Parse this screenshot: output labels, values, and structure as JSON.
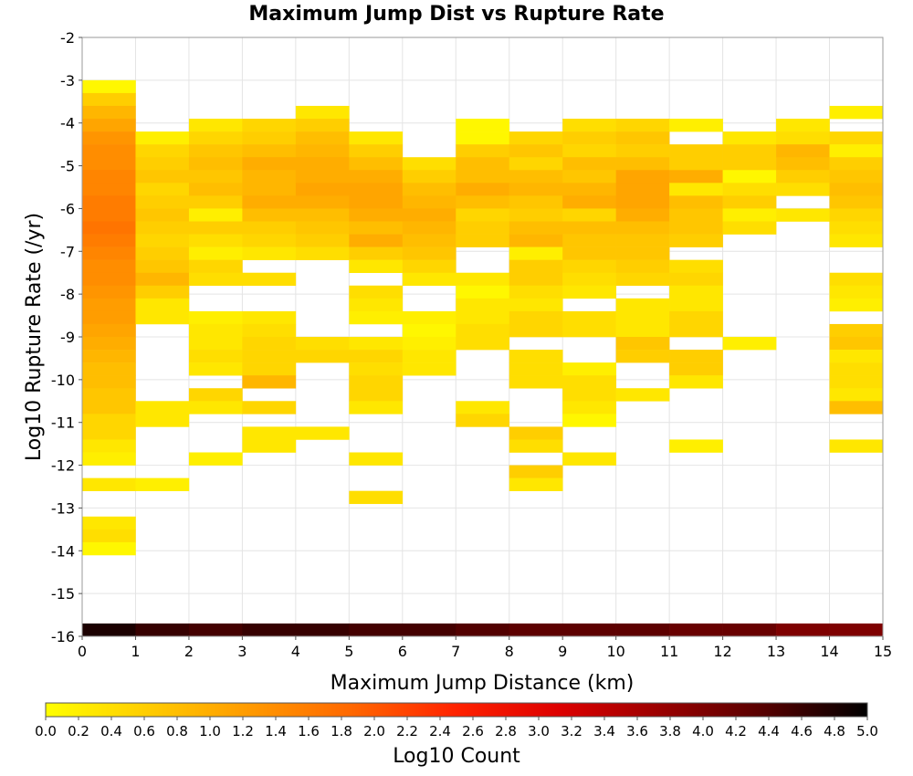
{
  "chart_data": {
    "type": "heatmap",
    "title": "Maximum Jump Dist vs Rupture Rate",
    "xlabel": "Maximum Jump Distance (km)",
    "ylabel": "Log10 Rupture Rate (/yr)",
    "xlim": [
      0,
      15
    ],
    "ylim": [
      -16,
      -2
    ],
    "x_ticks": [
      "0",
      "1",
      "2",
      "3",
      "4",
      "5",
      "6",
      "7",
      "8",
      "9",
      "10",
      "11",
      "12",
      "13",
      "14",
      "15"
    ],
    "y_ticks": [
      "-2",
      "-3",
      "-4",
      "-5",
      "-6",
      "-7",
      "-8",
      "-9",
      "-10",
      "-11",
      "-12",
      "-13",
      "-14",
      "-15",
      "-16"
    ],
    "bin_width_x": 1,
    "bin_height_y": 0.3,
    "grid": true,
    "colorbar": {
      "label": "Log10 Count",
      "range": [
        0,
        5
      ],
      "ticks": [
        "0.0",
        "0.2",
        "0.4",
        "0.6",
        "0.8",
        "1.0",
        "1.2",
        "1.4",
        "1.6",
        "1.8",
        "2.0",
        "2.2",
        "2.4",
        "2.6",
        "2.8",
        "3.0",
        "3.2",
        "3.4",
        "3.6",
        "3.8",
        "4.0",
        "4.2",
        "4.4",
        "4.6",
        "4.8",
        "5.0"
      ],
      "colors": [
        "#ffff00",
        "#ffcc00",
        "#ff9900",
        "#ff6600",
        "#ff2200",
        "#dd0000",
        "#990000",
        "#550000",
        "#000000"
      ]
    },
    "columns": [
      {
        "x": 0,
        "y_start": -3.0,
        "values": [
          0.1,
          0.6,
          0.9,
          1.1,
          1.3,
          1.4,
          1.4,
          1.5,
          1.5,
          1.6,
          1.6,
          1.7,
          1.6,
          1.5,
          1.4,
          1.4,
          1.3,
          1.2,
          1.2,
          1.1,
          1.0,
          0.9,
          0.8,
          0.8,
          0.7,
          0.7,
          0.5,
          0.5,
          0.3,
          0.2,
          null,
          0.3,
          null,
          null,
          0.3,
          0.4,
          0.1
        ]
      },
      {
        "x": 1,
        "y_start": -4.2,
        "values": [
          0.2,
          0.5,
          0.6,
          0.7,
          0.5,
          0.6,
          0.7,
          0.6,
          0.5,
          0.6,
          0.7,
          0.9,
          0.6,
          0.3,
          0.3,
          null,
          null,
          null,
          null,
          null,
          null,
          0.3,
          0.3,
          null,
          null,
          null,
          null,
          0.2
        ]
      },
      {
        "x": 2,
        "y_start": -3.9,
        "values": [
          0.3,
          0.5,
          0.7,
          0.8,
          0.7,
          0.8,
          0.6,
          0.2,
          0.6,
          0.4,
          0.2,
          0.5,
          0.4,
          null,
          null,
          0.2,
          0.3,
          0.3,
          0.4,
          0.3,
          null,
          0.5,
          0.3,
          null,
          null,
          null,
          0.2
        ]
      },
      {
        "x": 3,
        "y_start": -3.9,
        "values": [
          0.5,
          0.6,
          0.8,
          1.0,
          0.9,
          0.9,
          1.0,
          0.8,
          0.6,
          0.5,
          0.3,
          null,
          0.4,
          null,
          null,
          0.3,
          0.4,
          0.5,
          0.5,
          0.5,
          0.9,
          null,
          0.5,
          null,
          0.3,
          0.3
        ]
      },
      {
        "x": 4,
        "y_start": -3.6,
        "values": [
          0.3,
          0.6,
          0.8,
          0.9,
          1.0,
          1.0,
          1.1,
          1.0,
          0.8,
          0.7,
          0.6,
          0.4,
          null,
          null,
          null,
          null,
          null,
          null,
          0.4,
          0.5,
          null,
          null,
          null,
          null,
          null,
          0.3
        ]
      },
      {
        "x": 5,
        "y_start": -4.2,
        "values": [
          0.3,
          0.6,
          0.8,
          1.0,
          1.1,
          1.1,
          1.0,
          0.8,
          1.0,
          0.6,
          0.3,
          null,
          0.4,
          0.3,
          0.2,
          null,
          0.3,
          0.5,
          0.4,
          0.5,
          0.5,
          0.3,
          null,
          null,
          null,
          0.3,
          null,
          null,
          0.4
        ]
      },
      {
        "x": 6,
        "y_start": -4.8,
        "values": [
          0.4,
          0.6,
          0.8,
          0.9,
          1.0,
          0.9,
          0.8,
          0.7,
          0.5,
          0.3,
          null,
          null,
          0.2,
          0.1,
          0.2,
          0.3,
          0.3
        ]
      },
      {
        "x": 7,
        "y_start": -3.9,
        "values": [
          0.1,
          0.1,
          0.6,
          0.8,
          0.8,
          1.0,
          0.8,
          0.5,
          0.6,
          0.6,
          null,
          null,
          0.3,
          0.1,
          0.3,
          0.3,
          0.4,
          0.4,
          null,
          null,
          null,
          null,
          0.3,
          0.5
        ]
      },
      {
        "x": 8,
        "y_start": -4.2,
        "values": [
          0.5,
          0.7,
          0.5,
          0.8,
          0.9,
          0.7,
          0.6,
          0.8,
          0.9,
          0.2,
          0.6,
          0.6,
          0.4,
          0.3,
          0.5,
          0.5,
          null,
          0.4,
          0.4,
          0.4,
          null,
          null,
          null,
          0.6,
          0.4,
          null,
          0.6,
          0.3
        ]
      },
      {
        "x": 9,
        "y_start": -3.9,
        "values": [
          0.4,
          0.6,
          0.5,
          0.8,
          0.7,
          0.9,
          1.0,
          0.5,
          0.8,
          0.7,
          0.7,
          0.5,
          0.4,
          0.3,
          null,
          0.4,
          0.4,
          null,
          null,
          0.2,
          0.4,
          0.4,
          0.3,
          0.1,
          null,
          null,
          0.3
        ]
      },
      {
        "x": 10,
        "y_start": -3.9,
        "values": [
          0.5,
          0.7,
          0.6,
          0.8,
          1.1,
          1.1,
          1.1,
          1.0,
          0.8,
          0.7,
          0.7,
          0.6,
          0.5,
          null,
          0.3,
          0.3,
          0.3,
          0.7,
          0.6,
          null,
          null,
          0.3
        ]
      },
      {
        "x": 11,
        "y_start": -3.9,
        "values": [
          0.2,
          null,
          0.6,
          0.6,
          1.0,
          0.3,
          0.8,
          0.7,
          0.7,
          0.6,
          null,
          0.4,
          0.5,
          0.3,
          0.3,
          0.5,
          0.5,
          null,
          0.6,
          0.6,
          0.3,
          null,
          null,
          null,
          null,
          0.2
        ]
      },
      {
        "x": 12,
        "y_start": -4.2,
        "values": [
          0.3,
          0.6,
          0.6,
          0.1,
          0.4,
          0.6,
          0.2,
          0.4,
          null,
          null,
          null,
          null,
          null,
          null,
          null,
          null,
          0.2
        ]
      },
      {
        "x": 13,
        "y_start": -3.9,
        "values": [
          0.3,
          0.4,
          0.9,
          0.8,
          0.6,
          0.4,
          null,
          0.3
        ]
      },
      {
        "x": 14,
        "y_start": -3.6,
        "values": [
          0.2,
          null,
          0.5,
          0.2,
          0.6,
          0.7,
          0.8,
          0.7,
          0.5,
          0.4,
          0.3,
          null,
          null,
          0.4,
          0.3,
          0.2,
          null,
          0.6,
          0.7,
          0.3,
          0.4,
          0.4,
          0.3,
          0.8,
          null,
          null,
          0.3
        ]
      }
    ],
    "bottom_row": {
      "y": -16,
      "values": [
        4.8,
        4.6,
        4.5,
        4.6,
        4.6,
        4.5,
        4.5,
        4.4,
        4.3,
        4.3,
        4.3,
        4.2,
        4.2,
        4.0,
        4.0
      ]
    }
  }
}
